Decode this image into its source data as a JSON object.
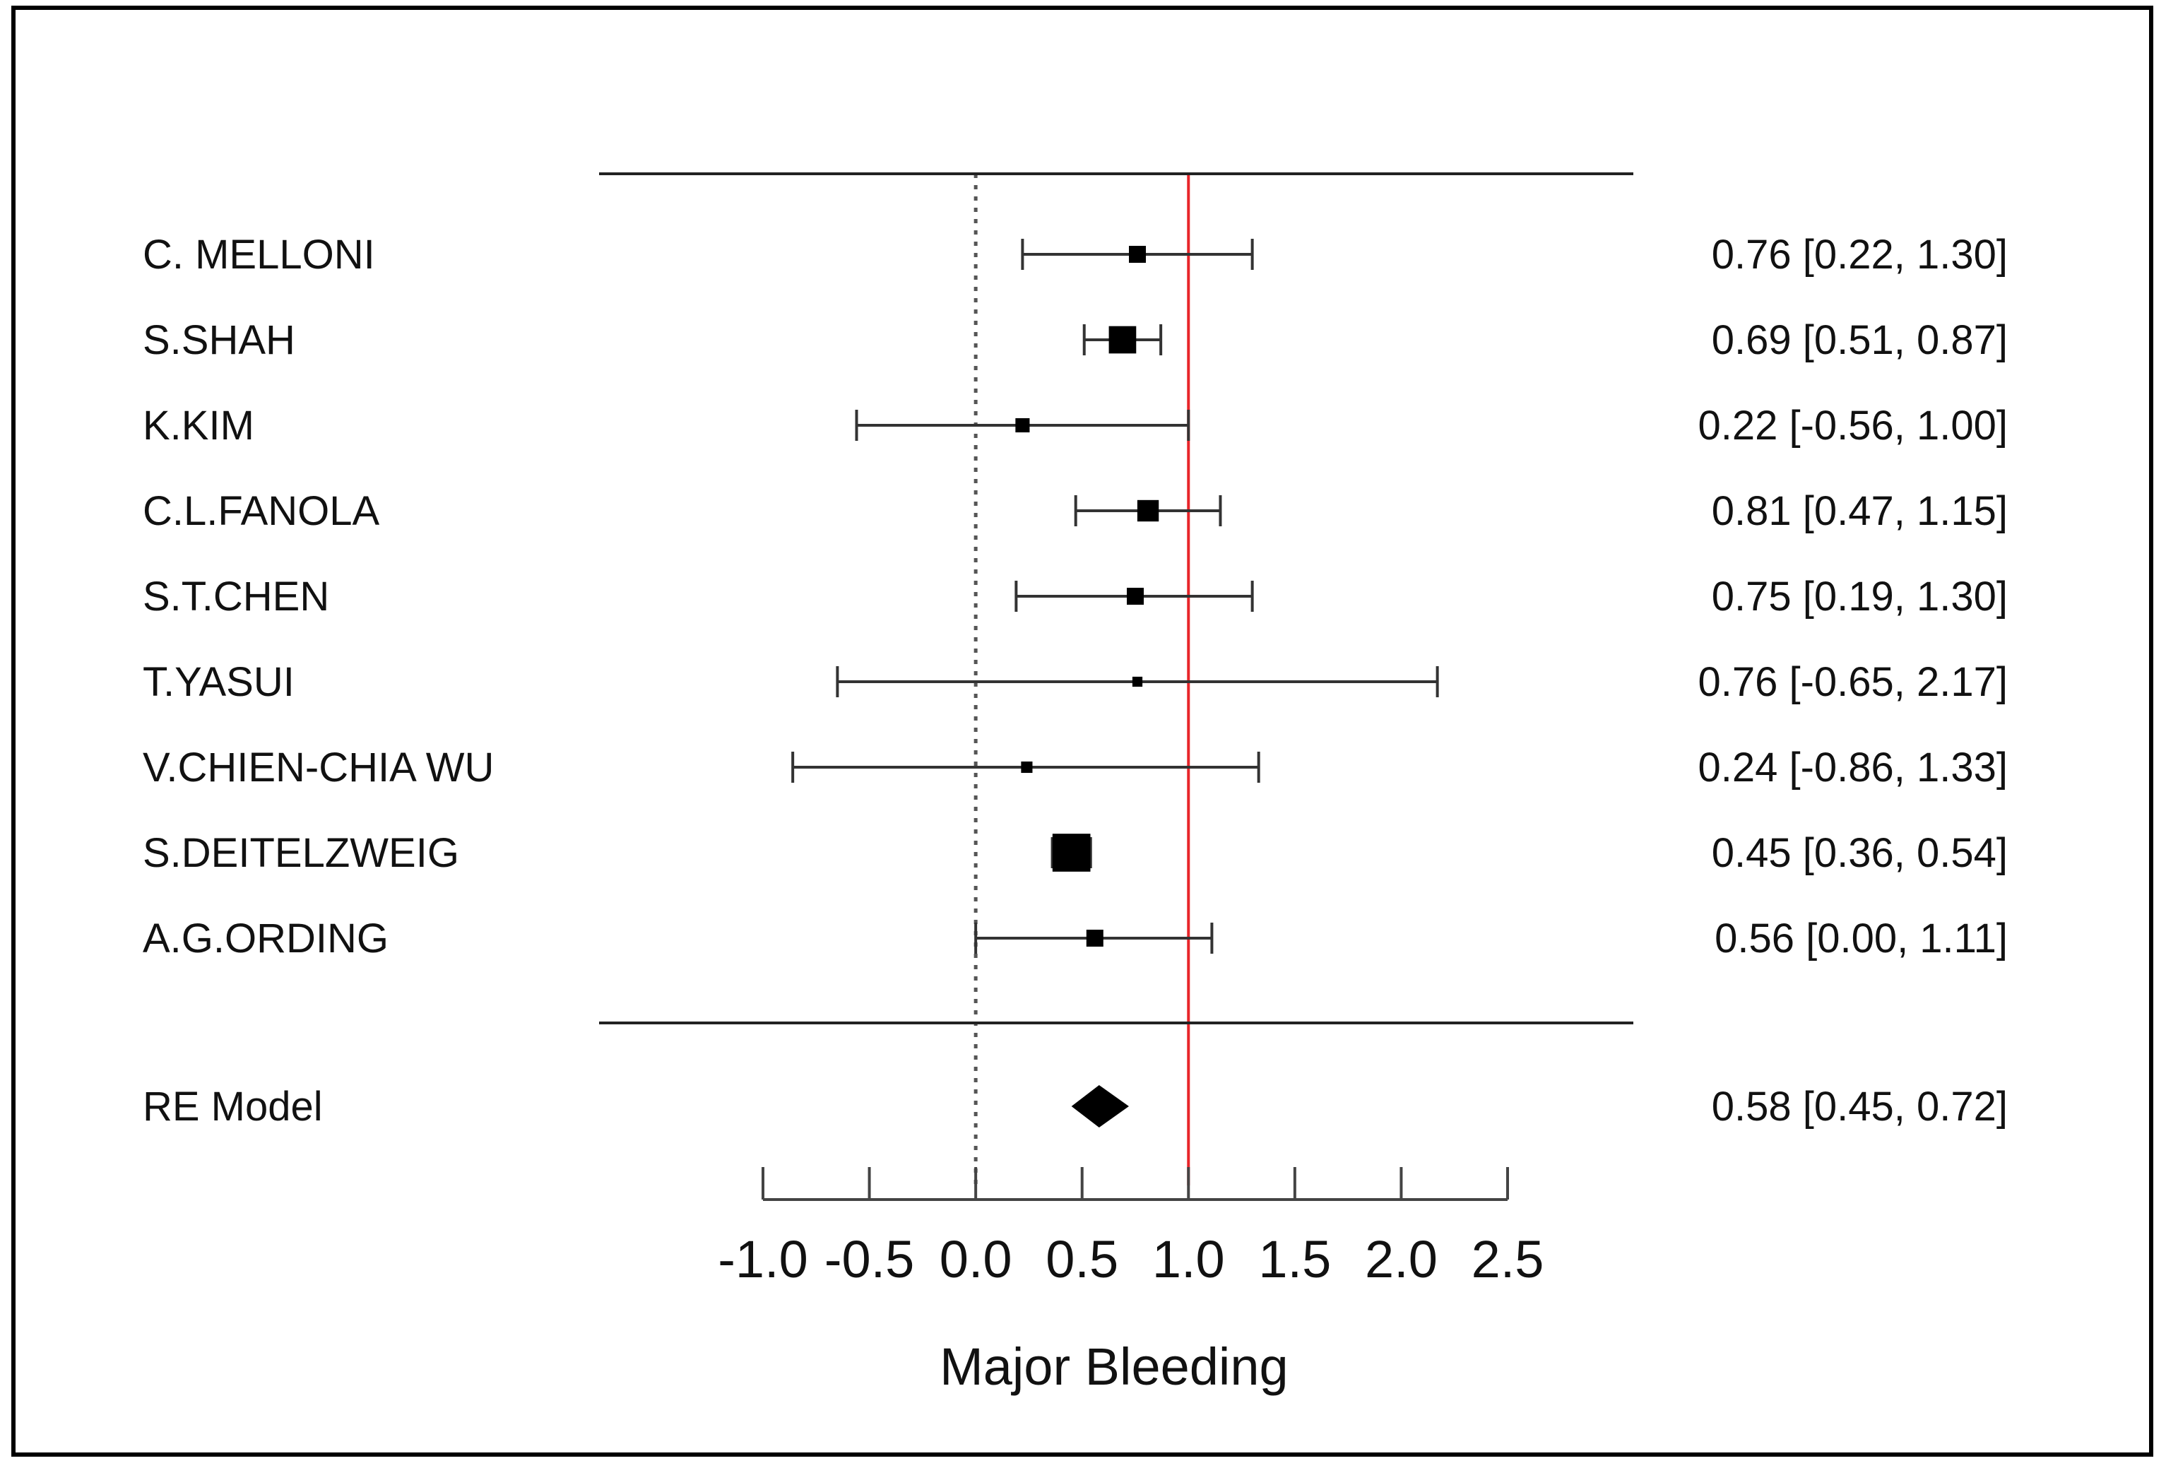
{
  "chart_data": {
    "type": "forest",
    "xlabel": "Major Bleeding",
    "xlim": [
      -1.0,
      2.5
    ],
    "x_ticks": [
      -1.0,
      -0.5,
      0.0,
      0.5,
      1.0,
      1.5,
      2.0,
      2.5
    ],
    "x_tick_labels": [
      "-1.0",
      "-0.5",
      "0.0",
      "0.5",
      "1.0",
      "1.5",
      "2.0",
      "2.5"
    ],
    "reference_lines": [
      {
        "value": 0.0,
        "style": "dotted",
        "color": "#555555"
      },
      {
        "value": 1.0,
        "style": "solid",
        "color": "#e8252a"
      }
    ],
    "studies": [
      {
        "name": "C. MELLONI",
        "estimate": 0.76,
        "lower": 0.22,
        "upper": 1.3,
        "weight": 1.0,
        "label": "0.76 [0.22, 1.30]"
      },
      {
        "name": "S.SHAH",
        "estimate": 0.69,
        "lower": 0.51,
        "upper": 0.87,
        "weight": 2.6,
        "label": "0.69 [0.51, 0.87]"
      },
      {
        "name": "K.KIM",
        "estimate": 0.22,
        "lower": -0.56,
        "upper": 1.0,
        "weight": 0.7,
        "label": "0.22 [-0.56, 1.00]"
      },
      {
        "name": "C.L.FANOLA",
        "estimate": 0.81,
        "lower": 0.47,
        "upper": 1.15,
        "weight": 1.6,
        "label": "0.81 [0.47, 1.15]"
      },
      {
        "name": "S.T.CHEN",
        "estimate": 0.75,
        "lower": 0.19,
        "upper": 1.3,
        "weight": 1.0,
        "label": "0.75 [0.19, 1.30]"
      },
      {
        "name": "T.YASUI",
        "estimate": 0.76,
        "lower": -0.65,
        "upper": 2.17,
        "weight": 0.35,
        "label": "0.76 [-0.65, 2.17]"
      },
      {
        "name": "V.CHIEN-CHIA WU",
        "estimate": 0.24,
        "lower": -0.86,
        "upper": 1.33,
        "weight": 0.45,
        "label": "0.24 [-0.86, 1.33]"
      },
      {
        "name": "S.DEITELZWEIG",
        "estimate": 0.45,
        "lower": 0.36,
        "upper": 0.54,
        "weight": 5.0,
        "label": "0.45 [0.36, 0.54]"
      },
      {
        "name": "A.G.ORDING",
        "estimate": 0.56,
        "lower": 0.0,
        "upper": 1.11,
        "weight": 1.0,
        "label": "0.56 [0.00, 1.11]"
      }
    ],
    "summary": {
      "name": "RE Model",
      "estimate": 0.58,
      "lower": 0.45,
      "upper": 0.72,
      "label": "0.58 [0.45, 0.72]"
    }
  }
}
